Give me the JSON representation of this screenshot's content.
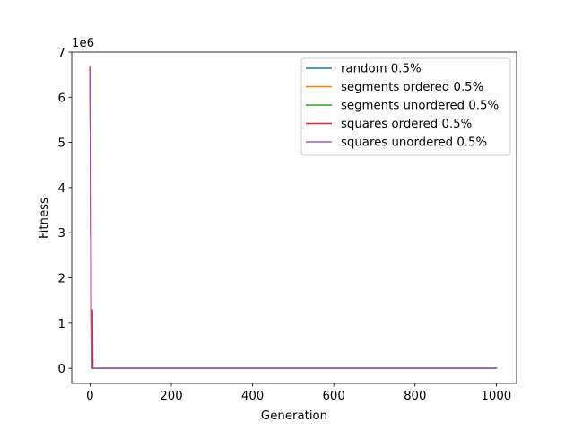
{
  "chart_data": {
    "type": "line",
    "title": "",
    "xlabel": "Generation",
    "ylabel": "Fitness",
    "y_offset_label": "1e6",
    "xlim": [
      -45,
      1050
    ],
    "ylim": [
      -335000,
      7000000
    ],
    "xticks": [
      0,
      200,
      400,
      600,
      800,
      1000
    ],
    "xtick_labels": [
      "0",
      "200",
      "400",
      "600",
      "800",
      "1000"
    ],
    "yticks": [
      0,
      1000000,
      2000000,
      3000000,
      4000000,
      5000000,
      6000000,
      7000000
    ],
    "ytick_labels": [
      "0",
      "1",
      "2",
      "3",
      "4",
      "5",
      "6",
      "7"
    ],
    "grid": false,
    "legend_position": "top-right",
    "series": [
      {
        "name": "random 0.5%",
        "color": "#1f77b4",
        "x": [
          0,
          1,
          2,
          3,
          4,
          5,
          10,
          20,
          1000
        ],
        "y": [
          6650000,
          4800000,
          2500000,
          500000,
          30000,
          0,
          0,
          0,
          0
        ]
      },
      {
        "name": "segments ordered 0.5%",
        "color": "#ff7f0e",
        "x": [
          0,
          1,
          2,
          3,
          4,
          5,
          10,
          20,
          1000
        ],
        "y": [
          6650000,
          4800000,
          2500000,
          500000,
          30000,
          0,
          0,
          0,
          0
        ]
      },
      {
        "name": "segments unordered 0.5%",
        "color": "#2ca02c",
        "x": [
          0,
          1,
          2,
          3,
          4,
          5,
          10,
          20,
          1000
        ],
        "y": [
          6650000,
          4800000,
          2500000,
          500000,
          30000,
          0,
          0,
          0,
          0
        ]
      },
      {
        "name": "squares ordered 0.5%",
        "color": "#d62728",
        "x": [
          0,
          1,
          2,
          3,
          4,
          5,
          6,
          7,
          10,
          20,
          1000
        ],
        "y": [
          6650000,
          4800000,
          2500000,
          500000,
          30000,
          1300000,
          1280000,
          0,
          0,
          0,
          0
        ]
      },
      {
        "name": "squares unordered 0.5%",
        "color": "#9467bd",
        "x": [
          0,
          1,
          2,
          3,
          4,
          5,
          10,
          20,
          1000
        ],
        "y": [
          6680000,
          6680000,
          4800000,
          2000000,
          30000,
          0,
          0,
          0,
          0
        ]
      }
    ]
  }
}
